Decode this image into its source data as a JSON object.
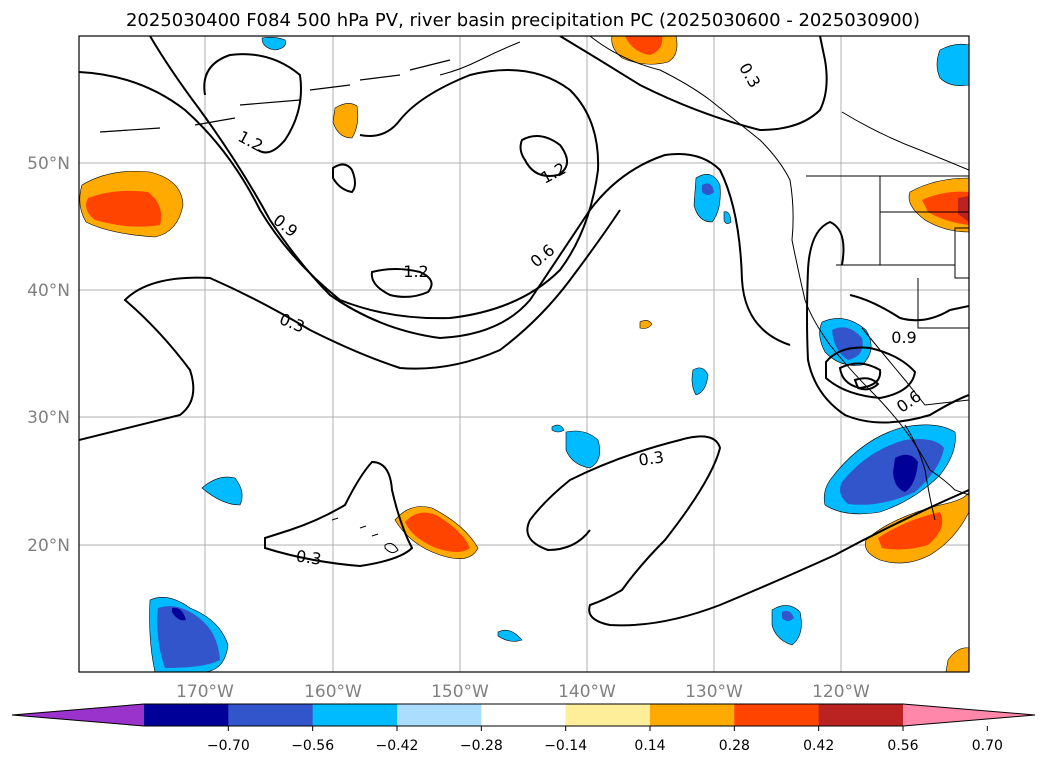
{
  "title": "2025030400 F084 500 hPa PV, river basin precipitation PC (2025030600 - 2025030900)",
  "map": {
    "lon_ticks": [
      "170°W",
      "160°W",
      "150°W",
      "140°W",
      "130°W",
      "120°W"
    ],
    "lat_ticks": [
      "50°N",
      "40°N",
      "30°N",
      "20°N"
    ],
    "grid": true
  },
  "contours": {
    "color": "#000000",
    "labels": [
      "1.2",
      "1.2",
      "1.2",
      "0.9",
      "0.6",
      "0.3",
      "0.3",
      "0.3",
      "0.3",
      "0.9",
      "0.6"
    ]
  },
  "colorbar": {
    "colors": [
      "#9933cc",
      "#000099",
      "#3355cc",
      "#00bbff",
      "#aaddff",
      "#ffffff",
      "#ffee99",
      "#ffaa00",
      "#ff4400",
      "#bb2222",
      "#ff88aa"
    ],
    "ticks": [
      "−0.70",
      "−0.56",
      "−0.42",
      "−0.28",
      "−0.14",
      "0.14",
      "0.28",
      "0.42",
      "0.56",
      "0.70"
    ]
  },
  "fills": {
    "orange": "#ffaa00",
    "red_orange": "#ff4400",
    "yellow": "#ffee99",
    "blue": "#3355cc",
    "cyan": "#00bbff",
    "navy": "#000099",
    "light_blue": "#aaddff"
  }
}
